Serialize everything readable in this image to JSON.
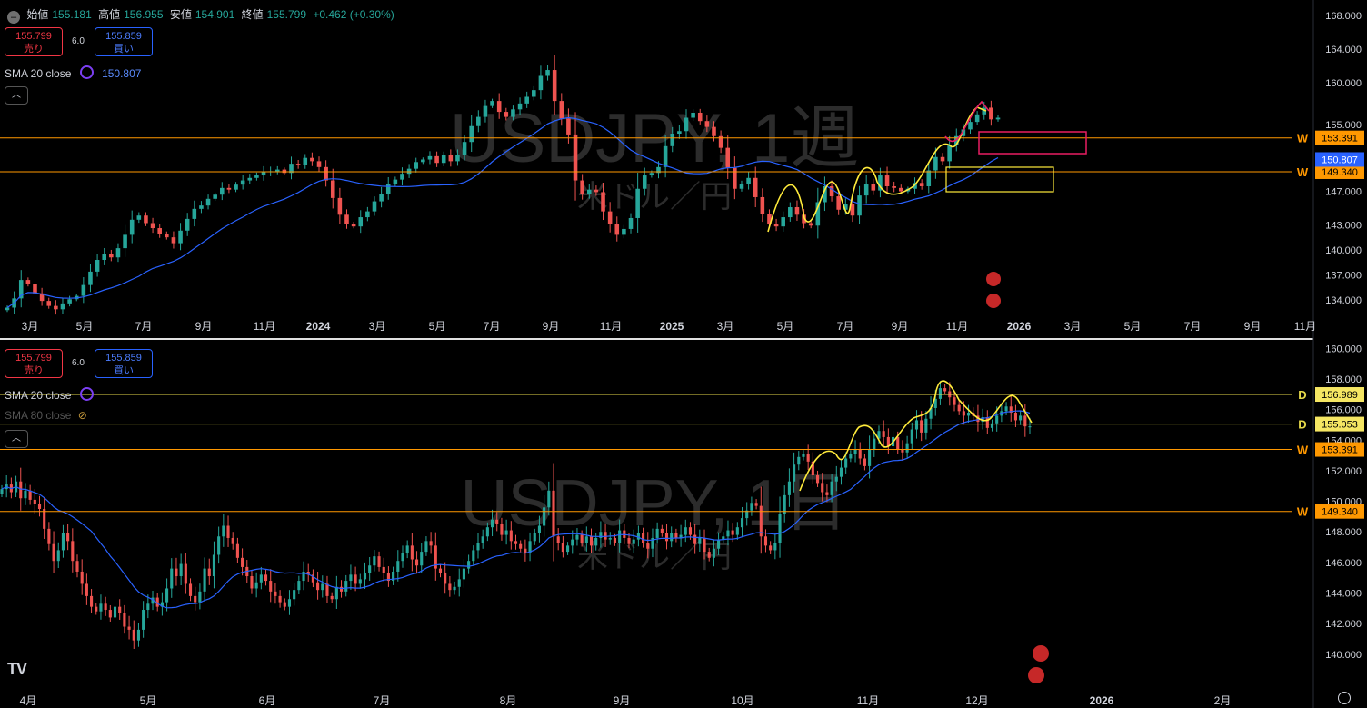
{
  "legend_top": {
    "open_label": "始値",
    "open": "155.181",
    "high_label": "高値",
    "high": "156.955",
    "low_label": "安値",
    "low": "154.901",
    "close_label": "終値",
    "close": "155.799",
    "change": "+0.462 (+0.30%)"
  },
  "trade": {
    "sell_price": "155.799",
    "sell_label": "売り",
    "spread": "6.0",
    "buy_price": "155.859",
    "buy_label": "買い"
  },
  "indicators": {
    "top_sma": {
      "label": "SMA 20 close",
      "value": "150.807"
    },
    "bottom_sma20": {
      "label": "SMA 20 close"
    },
    "bottom_sma80": {
      "label": "SMA 80 close"
    }
  },
  "colors": {
    "up": "#26a69a",
    "down": "#ef5350",
    "sma": "#2962ff",
    "level_line": "#ff9800",
    "d_line": "#e6d94a",
    "pink": "#e91e63",
    "yellow": "#ffeb3b"
  },
  "chart_data": [
    {
      "type": "candlestick",
      "watermark": "USDJPY, 1週",
      "watermark_sub": "米ドル／円",
      "x_ticks": [
        "3月",
        "5月",
        "7月",
        "9月",
        "11月",
        "2024",
        "3月",
        "5月",
        "7月",
        "9月",
        "11月",
        "2025",
        "3月",
        "5月",
        "7月",
        "9月",
        "11月",
        "2026",
        "3月",
        "5月",
        "7月",
        "9月",
        "11月"
      ],
      "y_ticks": [
        "168.000",
        "164.000",
        "160.000",
        "155.000",
        "150.000",
        "147.000",
        "143.000",
        "140.000",
        "137.000",
        "134.000"
      ],
      "ylim": [
        132.5,
        169
      ],
      "levels": [
        {
          "value": 153.391,
          "label": "153.391",
          "marker": "W"
        },
        {
          "value": 149.34,
          "label": "149.340",
          "marker": "W"
        }
      ],
      "sma_badge": "150.807",
      "closes": [
        133.1,
        134.2,
        136.4,
        135.9,
        134.8,
        133.9,
        133.3,
        132.9,
        133.6,
        134.1,
        134.5,
        135.8,
        137.4,
        138.8,
        139.5,
        139.1,
        140.2,
        141.8,
        143.6,
        144.1,
        143.2,
        142.6,
        141.9,
        141.5,
        140.8,
        142.3,
        143.7,
        144.9,
        145.3,
        146.1,
        146.6,
        147.4,
        147.2,
        147.8,
        148.3,
        148.6,
        148.9,
        149.3,
        149.4,
        149.6,
        149.2,
        150.3,
        150.1,
        151.0,
        150.6,
        149.9,
        148.3,
        146.2,
        144.2,
        143.1,
        142.8,
        143.9,
        144.6,
        145.8,
        146.7,
        147.9,
        148.4,
        149.1,
        149.7,
        150.5,
        150.8,
        151.2,
        150.4,
        151.3,
        150.6,
        151.4,
        152.9,
        154.8,
        155.9,
        157.2,
        157.8,
        156.5,
        155.9,
        156.8,
        157.5,
        158.3,
        159.1,
        160.8,
        161.5,
        157.8,
        155.7,
        153.8,
        148.3,
        146.7,
        147.2,
        146.9,
        144.6,
        143.1,
        141.8,
        142.5,
        143.8,
        147.3,
        148.9,
        149.2,
        149.9,
        152.4,
        153.9,
        154.2,
        155.8,
        156.4,
        155.4,
        154.7,
        153.6,
        152.2,
        149.8,
        147.3,
        147.9,
        148.6,
        146.3,
        144.3,
        143.1,
        142.8,
        143.9,
        145.1,
        144.2,
        143.2,
        142.9,
        145.7,
        147.6,
        146.4,
        144.8,
        145.5,
        144.1,
        146.5,
        147.9,
        147.1,
        148.9,
        147.6,
        147.4,
        147.0,
        147.3,
        148.0,
        147.6,
        149.5,
        151.1,
        150.6,
        152.6,
        153.6,
        154.4,
        155.3,
        156.2,
        157.0,
        155.6,
        155.8
      ]
    },
    {
      "type": "candlestick",
      "watermark": "USDJPY, 1日",
      "watermark_sub": "米ドル／円",
      "x_ticks": [
        "4月",
        "5月",
        "6月",
        "7月",
        "8月",
        "9月",
        "10月",
        "11月",
        "12月",
        "2026",
        "2月"
      ],
      "y_ticks": [
        "160.000",
        "158.000",
        "156.000",
        "154.000",
        "152.000",
        "150.000",
        "148.000",
        "146.000",
        "144.000",
        "142.000",
        "140.000"
      ],
      "ylim": [
        138.8,
        160.2
      ],
      "levels": [
        {
          "value": 156.989,
          "label": "156.989",
          "marker": "D"
        },
        {
          "value": 155.053,
          "label": "155.053",
          "marker": "D"
        },
        {
          "value": 153.391,
          "label": "153.391",
          "marker": "W"
        },
        {
          "value": 149.34,
          "label": "149.340",
          "marker": "W"
        }
      ],
      "closes": [
        150.8,
        151.1,
        150.6,
        151.3,
        150.2,
        150.7,
        150.1,
        149.8,
        149.5,
        148.2,
        147.2,
        146.1,
        146.8,
        147.9,
        147.4,
        146.1,
        145.4,
        144.6,
        143.8,
        143.1,
        142.8,
        143.3,
        142.9,
        142.4,
        143.1,
        142.7,
        141.8,
        141.6,
        140.9,
        141.6,
        142.9,
        143.3,
        143.7,
        143.1,
        143.4,
        144.3,
        145.6,
        145.1,
        145.9,
        144.6,
        143.8,
        143.4,
        144.1,
        145.6,
        145.1,
        146.5,
        147.7,
        148.4,
        147.6,
        147.2,
        146.3,
        145.7,
        145.1,
        144.3,
        144.7,
        145.2,
        144.8,
        144.1,
        143.8,
        143.4,
        143.1,
        143.6,
        144.2,
        144.8,
        145.4,
        145.2,
        144.7,
        144.2,
        144.6,
        143.8,
        143.6,
        144.4,
        144.1,
        144.8,
        145.2,
        144.6,
        144.9,
        145.3,
        145.8,
        146.4,
        145.7,
        145.3,
        144.8,
        145.4,
        146.1,
        146.6,
        147.1,
        146.2,
        145.8,
        146.7,
        147.4,
        147.1,
        145.6,
        145.3,
        144.6,
        144.2,
        144.4,
        144.9,
        145.6,
        146.1,
        146.8,
        147.3,
        147.7,
        148.3,
        148.8,
        148.5,
        147.8,
        148.1,
        147.4,
        147.2,
        146.9,
        146.6,
        147.4,
        147.9,
        148.4,
        149.6,
        150.7,
        147.7,
        147.3,
        146.7,
        147.1,
        147.5,
        147.8,
        147.3,
        147.7,
        147.1,
        147.6,
        148.0,
        147.5,
        147.6,
        147.3,
        148.1,
        147.6,
        147.2,
        147.5,
        147.9,
        147.3,
        146.9,
        147.6,
        148.2,
        147.9,
        147.4,
        147.9,
        147.6,
        147.8,
        148.3,
        147.8,
        147.2,
        147.6,
        146.7,
        146.3,
        146.9,
        147.5,
        147.7,
        148.1,
        147.8,
        148.3,
        148.9,
        149.4,
        149.9,
        149.7,
        147.7,
        147.1,
        146.8,
        147.3,
        149.2,
        150.4,
        151.3,
        152.4,
        152.9,
        153.1,
        152.6,
        151.7,
        151.2,
        150.6,
        150.4,
        151.3,
        151.6,
        152.2,
        152.8,
        153.1,
        153.4,
        152.8,
        152.3,
        153.4,
        154.1,
        154.6,
        154.2,
        153.6,
        154.2,
        153.4,
        153.2,
        153.8,
        154.7,
        155.3,
        154.5,
        155.4,
        156.1,
        156.7,
        157.4,
        157.2,
        156.8,
        156.3,
        155.9,
        155.6,
        155.8,
        155.6,
        155.2,
        155.5,
        154.8,
        155.1,
        155.6,
        155.9,
        156.2,
        155.8,
        155.3,
        155.6,
        154.9,
        154.9
      ]
    }
  ]
}
